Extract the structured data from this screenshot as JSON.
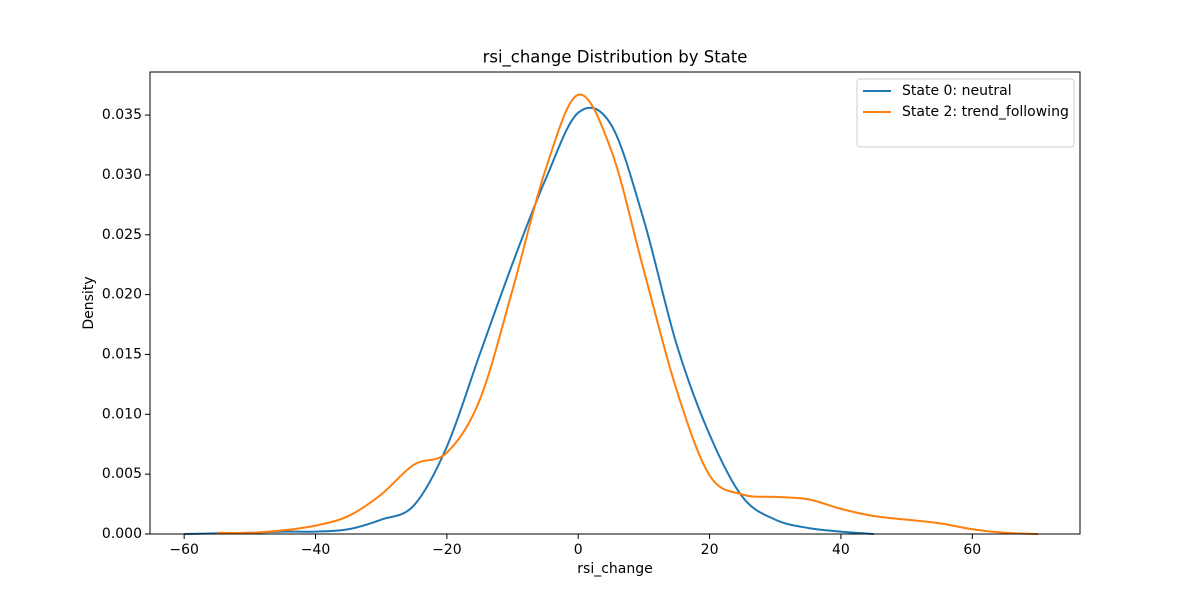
{
  "chart_data": {
    "type": "line",
    "title": "rsi_change Distribution by State",
    "x_label": "rsi_change",
    "y_label": "Density",
    "x": [
      -60,
      -55,
      -50,
      -45,
      -40,
      -35,
      -30,
      -25,
      -20,
      -15,
      -10,
      -5,
      0,
      5,
      10,
      15,
      20,
      25,
      30,
      35,
      40,
      45,
      50,
      55,
      60,
      65,
      70
    ],
    "series": [
      {
        "name": "State 0: neutral",
        "color": "#1f77b4",
        "values": [
          0.0,
          5e-05,
          0.0001,
          0.0002,
          0.0002,
          0.0004,
          0.0012,
          0.0024,
          0.0073,
          0.015,
          0.0226,
          0.0296,
          0.0352,
          0.0342,
          0.0262,
          0.0158,
          0.0083,
          0.0031,
          0.0012,
          0.0005,
          0.0002,
          0.0,
          null,
          null,
          null,
          null,
          null
        ]
      },
      {
        "name": "State 2: trend_following",
        "color": "#ff7f0e",
        "values": [
          null,
          0.0001,
          0.0001,
          0.0003,
          0.0007,
          0.0015,
          0.0033,
          0.0058,
          0.0068,
          0.0112,
          0.0204,
          0.0304,
          0.0367,
          0.0321,
          0.022,
          0.012,
          0.0049,
          0.0033,
          0.0031,
          0.0029,
          0.0021,
          0.0015,
          0.0012,
          0.0009,
          0.0004,
          0.0001,
          0.0
        ]
      }
    ],
    "xlim": [
      -65.2,
      76.4
    ],
    "ylim": [
      0,
      0.0386
    ],
    "xticks": [
      {
        "value": -60,
        "label": "−60"
      },
      {
        "value": -40,
        "label": "−40"
      },
      {
        "value": -20,
        "label": "−20"
      },
      0,
      20,
      40,
      60
    ],
    "yticks": [
      {
        "value": 0,
        "label": "0.000"
      },
      {
        "value": 0.005,
        "label": "0.005"
      },
      {
        "value": 0.01,
        "label": "0.010"
      },
      {
        "value": 0.015,
        "label": "0.015"
      },
      {
        "value": 0.02,
        "label": "0.020"
      },
      {
        "value": 0.025,
        "label": "0.025"
      },
      {
        "value": 0.03,
        "label": "0.030"
      },
      {
        "value": 0.035,
        "label": "0.035"
      }
    ],
    "legend": "upper right",
    "grid": false
  }
}
